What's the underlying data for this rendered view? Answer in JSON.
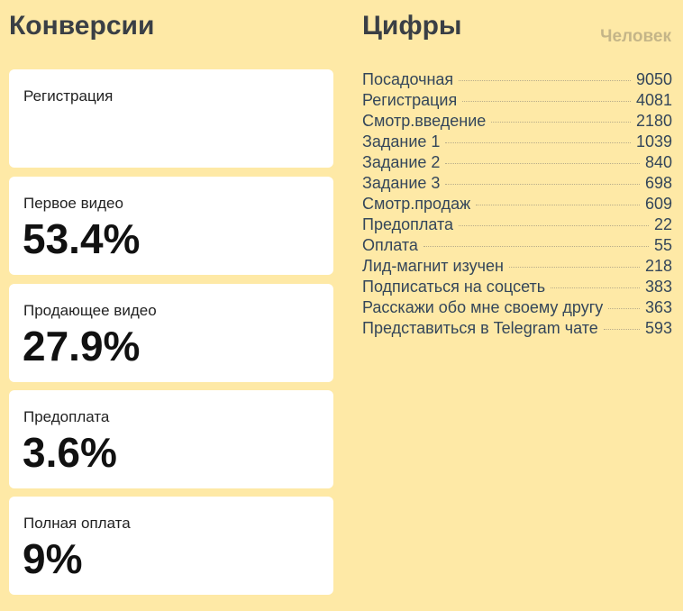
{
  "conversions": {
    "title": "Конверсии",
    "cards": [
      {
        "label": "Регистрация"
      },
      {
        "label": "Первое видео",
        "value": "53.4%"
      },
      {
        "label": "Продающее видео",
        "value": "27.9%"
      },
      {
        "label": "Предоплата",
        "value": "3.6%"
      },
      {
        "label": "Полная оплата",
        "value": "9%"
      }
    ]
  },
  "numbers": {
    "title": "Цифры",
    "column": "Человек",
    "rows": [
      {
        "name": "Посадочная",
        "value": 9050
      },
      {
        "name": "Регистрация",
        "value": 4081
      },
      {
        "name": "Смотр.введение",
        "value": 2180
      },
      {
        "name": "Задание 1",
        "value": 1039
      },
      {
        "name": "Задание 2",
        "value": 840
      },
      {
        "name": "Задание 3",
        "value": 698
      },
      {
        "name": "Смотр.продаж",
        "value": 609
      },
      {
        "name": "Предоплата",
        "value": 22
      },
      {
        "name": "Оплата",
        "value": 55
      },
      {
        "name": "Лид-магнит изучен",
        "value": 218
      },
      {
        "name": "Подписаться на соцсеть",
        "value": 383
      },
      {
        "name": "Расскажи обо мне своему другу",
        "value": 363
      },
      {
        "name": "Представиться в Telegram чате",
        "value": 593
      }
    ]
  }
}
